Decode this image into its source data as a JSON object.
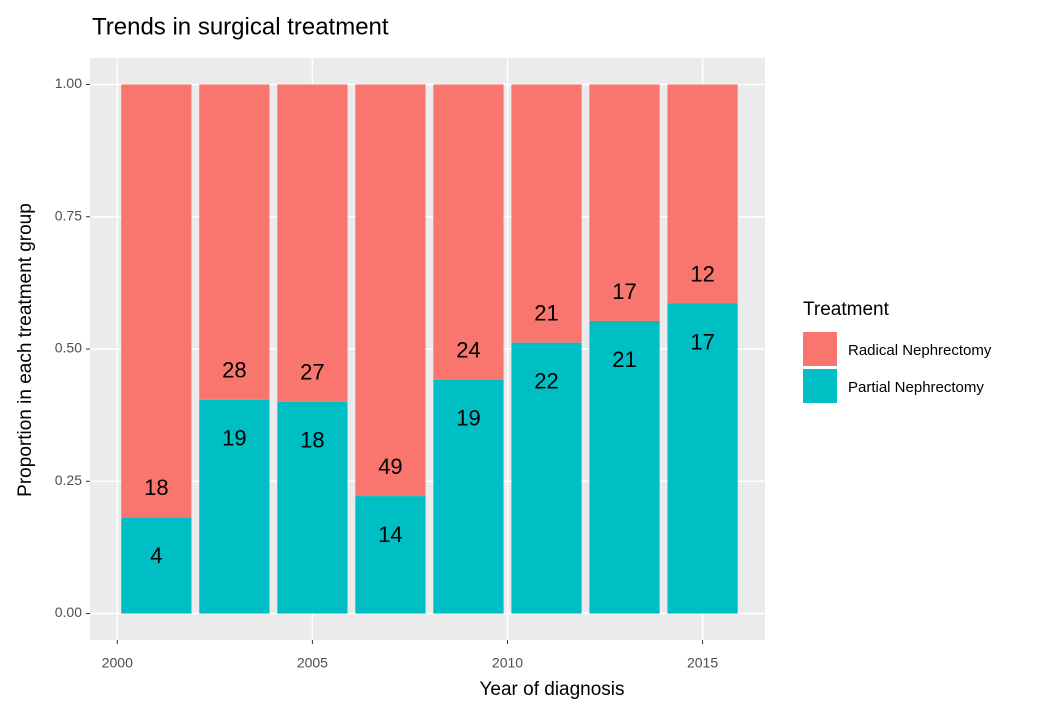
{
  "chart_data": {
    "type": "stacked-bar",
    "title": "Trends in surgical treatment",
    "x_label": "Year of diagnosis",
    "y_label": "Proportion in each treatment group",
    "legend_title": "Treatment",
    "x": [
      2001,
      2003,
      2005,
      2007,
      2009,
      2011,
      2013,
      2015
    ],
    "bar_width": 1.8,
    "series": [
      {
        "name": "Partial Nephrectomy",
        "color": "#00bfc4",
        "values": [
          0.182,
          0.404,
          0.4,
          0.222,
          0.442,
          0.512,
          0.553,
          0.586
        ],
        "counts": [
          4,
          19,
          18,
          14,
          19,
          22,
          21,
          17
        ]
      },
      {
        "name": "Radical Nephrectomy",
        "color": "#f8766d",
        "values": [
          0.818,
          0.596,
          0.6,
          0.778,
          0.558,
          0.488,
          0.447,
          0.414
        ],
        "counts": [
          18,
          28,
          27,
          49,
          24,
          21,
          17,
          12
        ]
      }
    ],
    "xlim": [
      1999.3,
      2016.6
    ],
    "xticks": [
      2000,
      2005,
      2010,
      2015
    ],
    "ylim": [
      -0.05,
      1.05
    ],
    "yticks": [
      {
        "value": 0,
        "label": "0.00"
      },
      {
        "value": 0.25,
        "label": "0.25"
      },
      {
        "value": 0.5,
        "label": "0.50"
      },
      {
        "value": 0.75,
        "label": "0.75"
      },
      {
        "value": 1,
        "label": "1.00"
      }
    ],
    "grid": true,
    "legend_position": "right"
  }
}
